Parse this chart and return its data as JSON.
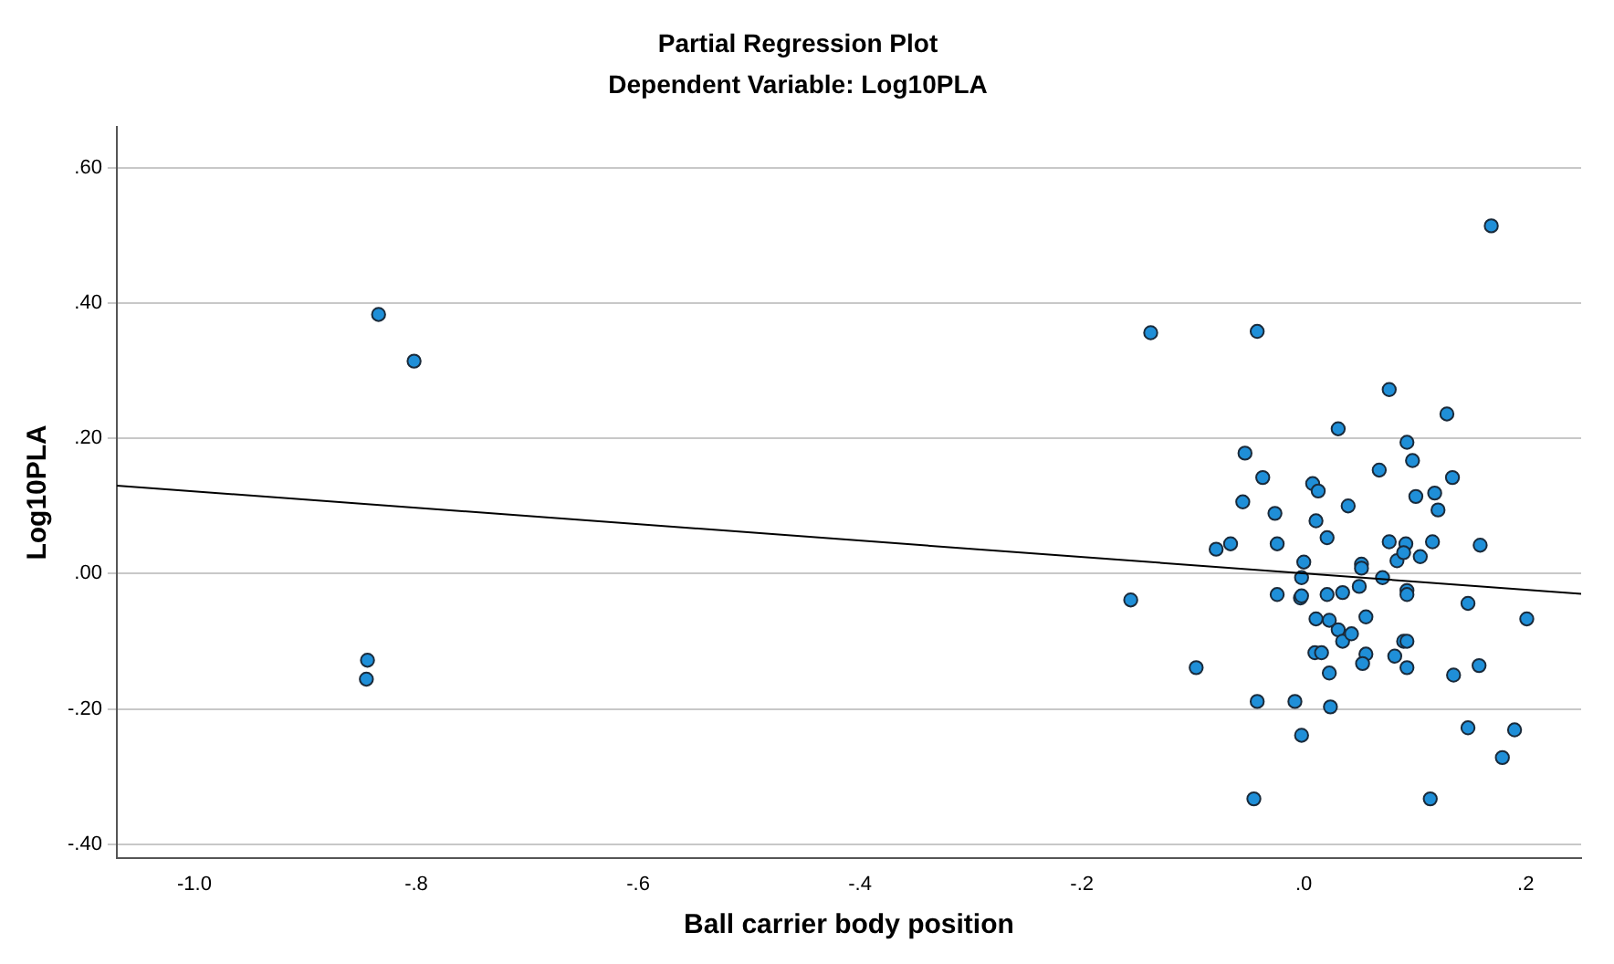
{
  "chart_data": {
    "type": "scatter",
    "title": "Partial Regression Plot",
    "subtitle": "Dependent Variable: Log10PLA",
    "xlabel": "Ball carrier body position",
    "ylabel": "Log10PLA",
    "xlim": [
      -1.07,
      0.25
    ],
    "ylim": [
      -0.42,
      0.66
    ],
    "xticks": [
      {
        "value": -1.0,
        "label": "-1.0"
      },
      {
        "value": -0.8,
        "label": "-.8"
      },
      {
        "value": -0.6,
        "label": "-.6"
      },
      {
        "value": -0.4,
        "label": "-.4"
      },
      {
        "value": -0.2,
        "label": "-.2"
      },
      {
        "value": 0,
        "label": ".0"
      },
      {
        "value": 0.2,
        "label": ".2"
      }
    ],
    "yticks": [
      {
        "value": -0.4,
        "label": "-.40"
      },
      {
        "value": -0.2,
        "label": "-.20"
      },
      {
        "value": 0,
        "label": ".00"
      },
      {
        "value": 0.2,
        "label": ".20"
      },
      {
        "value": 0.4,
        "label": ".40"
      },
      {
        "value": 0.6,
        "label": ".60"
      }
    ],
    "grid": "y",
    "legend": false,
    "marker": "circle",
    "series": [
      {
        "type": "scatter",
        "color": "#1f8fd8",
        "x": [
          -0.834,
          -0.802,
          -0.844,
          -0.845,
          -0.156,
          -0.097,
          -0.138,
          -0.042,
          0.169,
          0.031,
          0.129,
          -0.053,
          -0.037,
          -0.055,
          -0.026,
          -0.079,
          -0.066,
          -0.024,
          0.008,
          0.013,
          0.011,
          0.021,
          0.04,
          0.077,
          0.068,
          0.093,
          0.098,
          0.134,
          0.101,
          0.118,
          0.121,
          0.077,
          0.092,
          0.116,
          0.159,
          0.084,
          0.105,
          0.0,
          0.052,
          0.09,
          -0.002,
          0.052,
          0.05,
          0.071,
          0.093,
          0.093,
          -0.024,
          -0.003,
          -0.002,
          0.021,
          0.035,
          0.148,
          0.201,
          0.011,
          0.023,
          0.031,
          0.035,
          0.043,
          0.056,
          0.09,
          0.093,
          0.01,
          0.016,
          0.056,
          0.053,
          0.082,
          0.093,
          0.023,
          0.135,
          0.158,
          -0.042,
          -0.008,
          0.024,
          -0.002,
          0.148,
          0.19,
          0.179,
          -0.045,
          0.114
        ],
        "values": [
          0.383,
          0.314,
          -0.128,
          -0.156,
          -0.039,
          -0.139,
          0.356,
          0.358,
          0.514,
          0.214,
          0.236,
          0.178,
          0.142,
          0.106,
          0.089,
          0.036,
          0.044,
          0.044,
          0.133,
          0.122,
          0.078,
          0.053,
          0.1,
          0.272,
          0.153,
          0.194,
          0.167,
          0.142,
          0.114,
          0.119,
          0.094,
          0.047,
          0.044,
          0.047,
          0.042,
          0.019,
          0.025,
          0.017,
          0.014,
          0.031,
          -0.006,
          0.008,
          -0.019,
          -0.006,
          -0.025,
          -0.031,
          -0.031,
          -0.036,
          -0.033,
          -0.031,
          -0.028,
          -0.044,
          -0.067,
          -0.067,
          -0.069,
          -0.083,
          -0.1,
          -0.089,
          -0.064,
          -0.1,
          -0.1,
          -0.117,
          -0.117,
          -0.119,
          -0.133,
          -0.122,
          -0.139,
          -0.147,
          -0.15,
          -0.136,
          -0.189,
          -0.189,
          -0.197,
          -0.239,
          -0.228,
          -0.231,
          -0.272,
          -0.333,
          -0.333
        ]
      },
      {
        "type": "line",
        "color": "#000000",
        "marker": "none",
        "line_style": "solid",
        "x": [
          -1.07,
          0.25
        ],
        "values": [
          0.13,
          -0.03
        ]
      }
    ]
  }
}
